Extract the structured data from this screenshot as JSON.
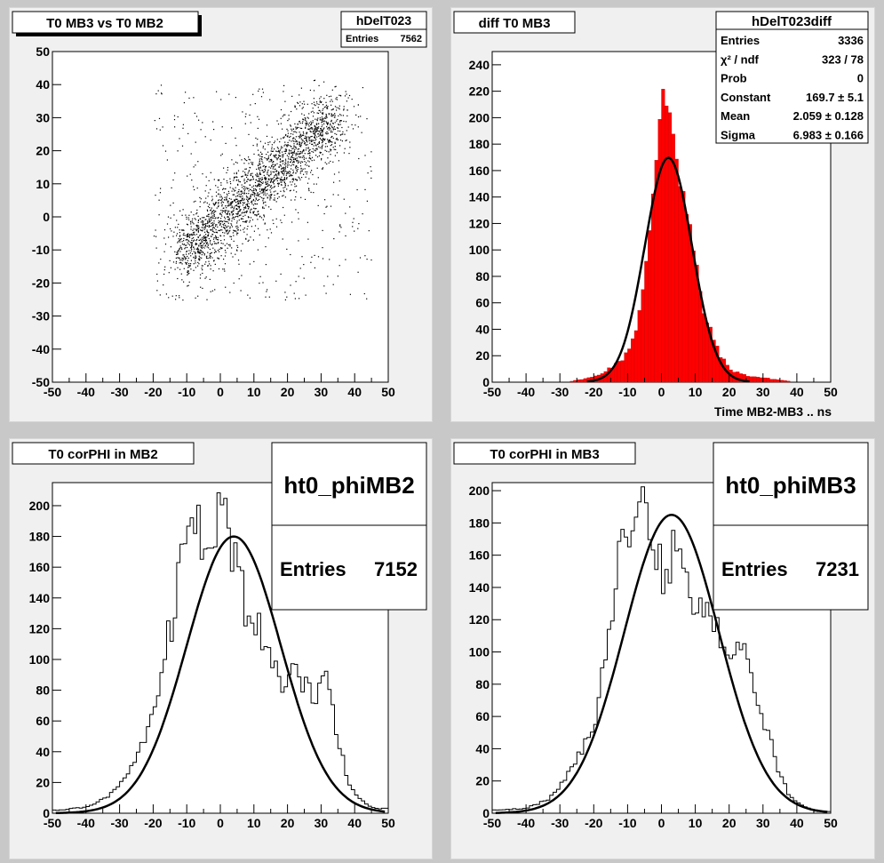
{
  "pads": [
    {
      "id": "scatter",
      "title": "T0 MB3 vs T0 MB2",
      "stats": {
        "name": "hDelT023",
        "rows": [
          {
            "label": "Entries",
            "value": "7562"
          }
        ]
      },
      "xlabel": "",
      "ylabel": ""
    },
    {
      "id": "diff",
      "title": "diff T0 MB3",
      "stats": {
        "name": "hDelT023diff",
        "rows": [
          {
            "label": "Entries",
            "value": "3336"
          },
          {
            "label": "χ² / ndf",
            "value": "323 / 78"
          },
          {
            "label": "Prob",
            "value": "0"
          },
          {
            "label": "Constant",
            "value": "169.7 ± 5.1"
          },
          {
            "label": "Mean",
            "value": "2.059 ± 0.128"
          },
          {
            "label": "Sigma",
            "value": "6.983 ± 0.166"
          }
        ]
      },
      "xlabel": "Time MB2-MB3  ..  ns",
      "ylabel": ""
    },
    {
      "id": "phi2",
      "title": "T0 corPHI in MB2",
      "stats": {
        "name": "ht0_phiMB2",
        "rows": [
          {
            "label": "Entries",
            "value": "7152"
          }
        ]
      },
      "xlabel": "",
      "ylabel": ""
    },
    {
      "id": "phi3",
      "title": "T0 corPHI in MB3",
      "stats": {
        "name": "ht0_phiMB3",
        "rows": [
          {
            "label": "Entries",
            "value": "7231"
          }
        ]
      },
      "xlabel": "",
      "ylabel": ""
    }
  ],
  "colors": {
    "fill": "#ff0000",
    "line": "#000000",
    "pad": "#f0f0f0",
    "frame": "#ffffff"
  },
  "chart_data": [
    {
      "type": "scatter",
      "title": "T0 MB3 vs T0 MB2",
      "xlim": [
        -50,
        50
      ],
      "ylim": [
        -50,
        50
      ],
      "x_ticks": [
        -50,
        -40,
        -30,
        -20,
        -10,
        0,
        10,
        20,
        30,
        40,
        50
      ],
      "y_ticks": [
        -50,
        -40,
        -30,
        -20,
        -10,
        0,
        10,
        20,
        30,
        40,
        50
      ],
      "entries": 7562,
      "correlation_centers": [
        [
          -10,
          -10
        ],
        [
          0,
          -2
        ],
        [
          10,
          8
        ],
        [
          20,
          17
        ],
        [
          30,
          28
        ]
      ],
      "grid": false
    },
    {
      "type": "bar",
      "title": "diff T0 MB3",
      "xlabel": "Time MB2-MB3  ..  ns",
      "xlim": [
        -50,
        50
      ],
      "ylim": [
        0,
        250
      ],
      "x_ticks": [
        -50,
        -40,
        -30,
        -20,
        -10,
        0,
        10,
        20,
        30,
        40,
        50
      ],
      "y_ticks": [
        0,
        20,
        40,
        60,
        80,
        100,
        120,
        140,
        160,
        180,
        200,
        220,
        240
      ],
      "bin_width": 1,
      "x": [
        -20,
        -18,
        -16,
        -14,
        -12,
        -10,
        -8,
        -6,
        -4,
        -2,
        -1,
        0,
        1,
        2,
        3,
        4,
        5,
        6,
        8,
        10,
        12,
        14,
        16,
        18,
        20,
        25
      ],
      "values": [
        4,
        6,
        10,
        12,
        16,
        24,
        36,
        60,
        95,
        150,
        190,
        225,
        233,
        215,
        200,
        190,
        170,
        150,
        120,
        90,
        60,
        40,
        30,
        18,
        10,
        5
      ],
      "fit": {
        "function": "gaus",
        "constant": 169.7,
        "mean": 2.059,
        "sigma": 6.983
      },
      "grid": false
    },
    {
      "type": "line",
      "title": "T0 corPHI in MB2",
      "xlim": [
        -50,
        50
      ],
      "ylim": [
        0,
        215
      ],
      "x_ticks": [
        -50,
        -40,
        -30,
        -20,
        -10,
        0,
        10,
        20,
        30,
        40,
        50
      ],
      "y_ticks": [
        0,
        20,
        40,
        60,
        80,
        100,
        120,
        140,
        160,
        180,
        200
      ],
      "x": [
        -48,
        -40,
        -34,
        -30,
        -26,
        -22,
        -20,
        -18,
        -16,
        -14,
        -12,
        -10,
        -8,
        -6,
        -4,
        -2,
        0,
        2,
        4,
        6,
        8,
        10,
        12,
        14,
        16,
        18,
        20,
        22,
        24,
        26,
        28,
        30,
        32,
        34,
        36,
        38,
        42,
        46
      ],
      "values": [
        2,
        4,
        10,
        18,
        32,
        52,
        62,
        80,
        110,
        125,
        160,
        190,
        178,
        190,
        160,
        182,
        206,
        180,
        168,
        150,
        130,
        122,
        118,
        110,
        100,
        75,
        90,
        95,
        82,
        102,
        70,
        100,
        80,
        62,
        40,
        18,
        8,
        3
      ],
      "fit": {
        "function": "gaus",
        "peak": 180,
        "mean": 4,
        "sigma": 14
      },
      "grid": false
    },
    {
      "type": "line",
      "title": "T0 corPHI in MB3",
      "xlim": [
        -50,
        50
      ],
      "ylim": [
        0,
        205
      ],
      "x_ticks": [
        -50,
        -40,
        -30,
        -20,
        -10,
        0,
        10,
        20,
        30,
        40,
        50
      ],
      "y_ticks": [
        0,
        20,
        40,
        60,
        80,
        100,
        120,
        140,
        160,
        180,
        200
      ],
      "x": [
        -48,
        -40,
        -34,
        -30,
        -26,
        -22,
        -20,
        -18,
        -16,
        -14,
        -12,
        -10,
        -8,
        -6,
        -4,
        -2,
        0,
        2,
        4,
        6,
        8,
        10,
        12,
        14,
        16,
        18,
        20,
        22,
        24,
        26,
        28,
        30,
        32,
        34,
        36,
        38,
        42,
        46
      ],
      "values": [
        2,
        3,
        8,
        16,
        30,
        45,
        55,
        75,
        110,
        135,
        160,
        185,
        175,
        190,
        178,
        168,
        150,
        140,
        168,
        175,
        140,
        128,
        122,
        118,
        115,
        110,
        98,
        108,
        100,
        88,
        78,
        60,
        48,
        30,
        20,
        10,
        4,
        1
      ],
      "fit": {
        "function": "gaus",
        "peak": 185,
        "mean": 3,
        "sigma": 14
      },
      "grid": false
    }
  ]
}
